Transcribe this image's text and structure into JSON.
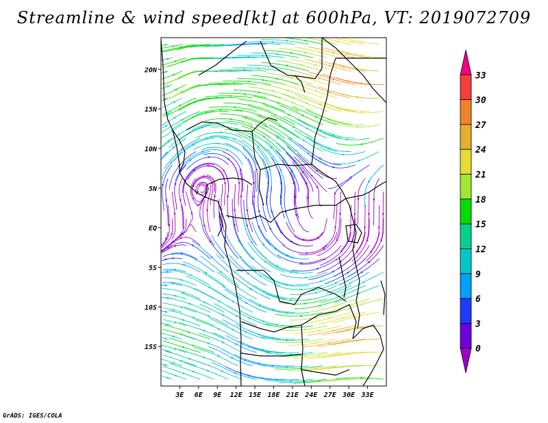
{
  "title": "Streamline & wind speed[kt] at 600hPa, VT: 2019072709",
  "footer": "GrADS: IGES/COLA",
  "map": {
    "type": "streamline-map",
    "lon_range": [
      0,
      36
    ],
    "lat_range": [
      -20,
      24
    ],
    "lat_ticks": [
      {
        "value": 20,
        "label": "20N"
      },
      {
        "value": 15,
        "label": "15N"
      },
      {
        "value": 10,
        "label": "10N"
      },
      {
        "value": 5,
        "label": "5N"
      },
      {
        "value": 0,
        "label": "EQ"
      },
      {
        "value": -5,
        "label": "5S"
      },
      {
        "value": -10,
        "label": "10S"
      },
      {
        "value": -15,
        "label": "15S"
      }
    ],
    "lon_ticks": [
      {
        "value": 3,
        "label": "3E"
      },
      {
        "value": 6,
        "label": "6E"
      },
      {
        "value": 9,
        "label": "9E"
      },
      {
        "value": 12,
        "label": "12E"
      },
      {
        "value": 15,
        "label": "15E"
      },
      {
        "value": 18,
        "label": "18E"
      },
      {
        "value": 21,
        "label": "21E"
      },
      {
        "value": 24,
        "label": "24E"
      },
      {
        "value": 27,
        "label": "27E"
      },
      {
        "value": 30,
        "label": "30E"
      },
      {
        "value": 33,
        "label": "33E"
      }
    ]
  },
  "colorbar": {
    "levels": [
      "0",
      "3",
      "6",
      "9",
      "12",
      "15",
      "18",
      "21",
      "24",
      "27",
      "30",
      "33"
    ],
    "colors": [
      "#a000c8",
      "#6e00dc",
      "#1e3cff",
      "#00a0ff",
      "#00c8c8",
      "#00d28c",
      "#00dc00",
      "#a0e632",
      "#e6dc32",
      "#e6af2d",
      "#f08228",
      "#fa3c3c",
      "#f00082"
    ]
  }
}
